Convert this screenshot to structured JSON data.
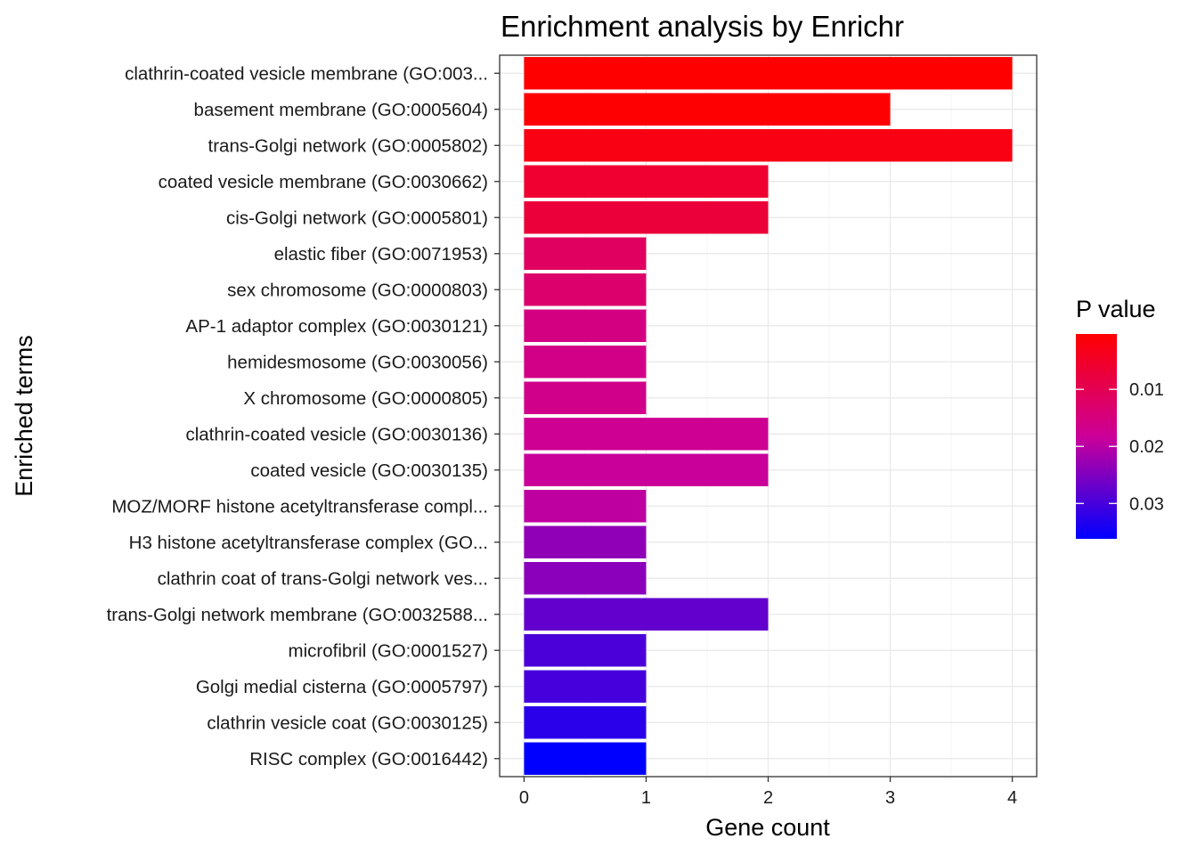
{
  "chart_data": {
    "type": "bar",
    "orientation": "horizontal",
    "title": "Enrichment analysis by Enrichr",
    "xlabel": "Gene count",
    "ylabel": "Enriched terms",
    "xlim": [
      -0.2,
      4.2
    ],
    "xticks": [
      0,
      1,
      2,
      3,
      4
    ],
    "xtick_labels": [
      "0",
      "1",
      "2",
      "3",
      "4"
    ],
    "grid": true,
    "categories": [
      "clathrin-coated vesicle membrane (GO:003...",
      "basement membrane (GO:0005604)",
      "trans-Golgi network (GO:0005802)",
      "coated vesicle membrane (GO:0030662)",
      "cis-Golgi network (GO:0005801)",
      "elastic fiber (GO:0071953)",
      "sex chromosome (GO:0000803)",
      "AP-1 adaptor complex (GO:0030121)",
      "hemidesmosome (GO:0030056)",
      "X chromosome (GO:0000805)",
      "clathrin-coated vesicle (GO:0030136)",
      "coated vesicle (GO:0030135)",
      "MOZ/MORF histone acetyltransferase compl...",
      "H3 histone acetyltransferase complex (GO...",
      "clathrin coat of trans-Golgi network ves...",
      "trans-Golgi network membrane (GO:0032588...",
      "microfibril (GO:0001527)",
      "Golgi medial cisterna (GO:0005797)",
      "clathrin vesicle coat (GO:0030125)",
      "RISC complex (GO:0016442)"
    ],
    "values": [
      4,
      3,
      4,
      2,
      2,
      1,
      1,
      1,
      1,
      1,
      2,
      2,
      1,
      1,
      1,
      2,
      1,
      1,
      1,
      1
    ],
    "p_values": [
      0.0003,
      0.0005,
      0.0025,
      0.006,
      0.007,
      0.0115,
      0.013,
      0.0155,
      0.016,
      0.0165,
      0.0175,
      0.0185,
      0.0195,
      0.0235,
      0.024,
      0.0275,
      0.0295,
      0.03,
      0.0325,
      0.0362
    ],
    "legend": {
      "title": "P value",
      "position": "right",
      "range": [
        0.0003,
        0.0362
      ],
      "ticks": [
        0.01,
        0.02,
        0.03
      ],
      "tick_labels": [
        "0.01",
        "0.02",
        "0.03"
      ],
      "color_low": "#ff0000",
      "color_high": "#0000ff"
    }
  }
}
